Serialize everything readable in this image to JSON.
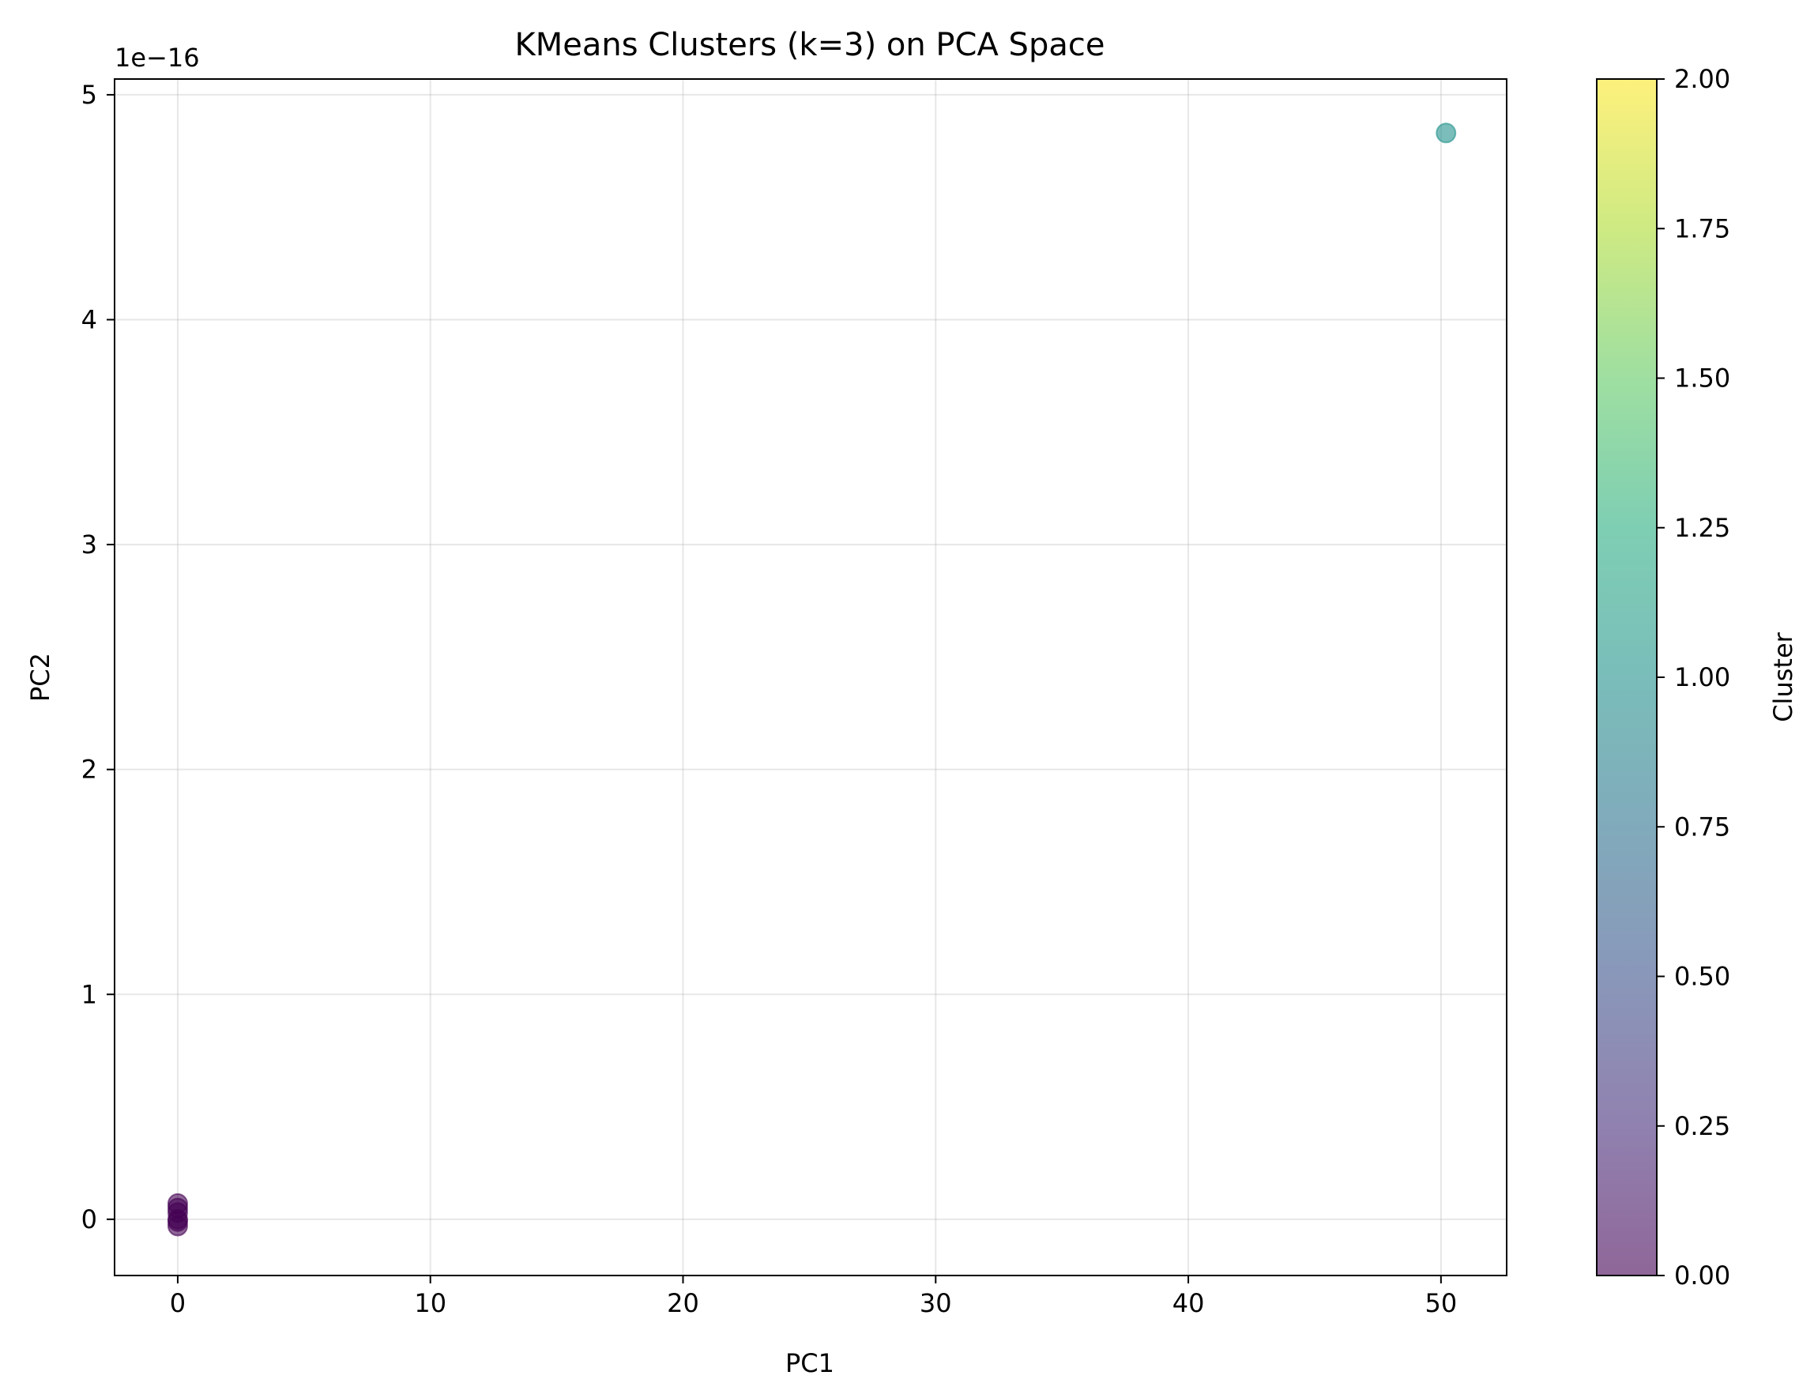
{
  "chart_data": {
    "type": "scatter",
    "title": "KMeans Clusters (k=3) on PCA Space",
    "xlabel": "PC1",
    "ylabel": "PC2",
    "y_offset_label": "1e−16",
    "xlim": [
      -2.5,
      52.6
    ],
    "ylim": [
      -0.25,
      5.07
    ],
    "xticks": [
      0,
      10,
      20,
      30,
      40,
      50
    ],
    "xtick_labels": [
      "0",
      "10",
      "20",
      "30",
      "40",
      "50"
    ],
    "yticks": [
      0,
      1,
      2,
      3,
      4,
      5
    ],
    "ytick_labels": [
      "0",
      "1",
      "2",
      "3",
      "4",
      "5"
    ],
    "grid": true,
    "points": [
      {
        "x": 0,
        "y": 0.07,
        "cluster": 0
      },
      {
        "x": 0,
        "y": 0.03,
        "cluster": 0
      },
      {
        "x": 0,
        "y": 0.0,
        "cluster": 0
      },
      {
        "x": 0,
        "y": -0.03,
        "cluster": 0
      },
      {
        "x": 0,
        "y": 0.05,
        "cluster": 0
      },
      {
        "x": 0,
        "y": -0.01,
        "cluster": 0
      },
      {
        "x": 50.2,
        "y": 4.83,
        "cluster": 1
      }
    ],
    "colorbar": {
      "label": "Cluster",
      "range": [
        0,
        2
      ],
      "colormap": "viridis",
      "ticks": [
        0,
        0.25,
        0.5,
        0.75,
        1.0,
        1.25,
        1.5,
        1.75,
        2.0
      ],
      "tick_labels": [
        "0.00",
        "0.25",
        "0.50",
        "0.75",
        "1.00",
        "1.25",
        "1.50",
        "1.75",
        "2.00"
      ]
    },
    "marker_alpha": 0.6
  }
}
